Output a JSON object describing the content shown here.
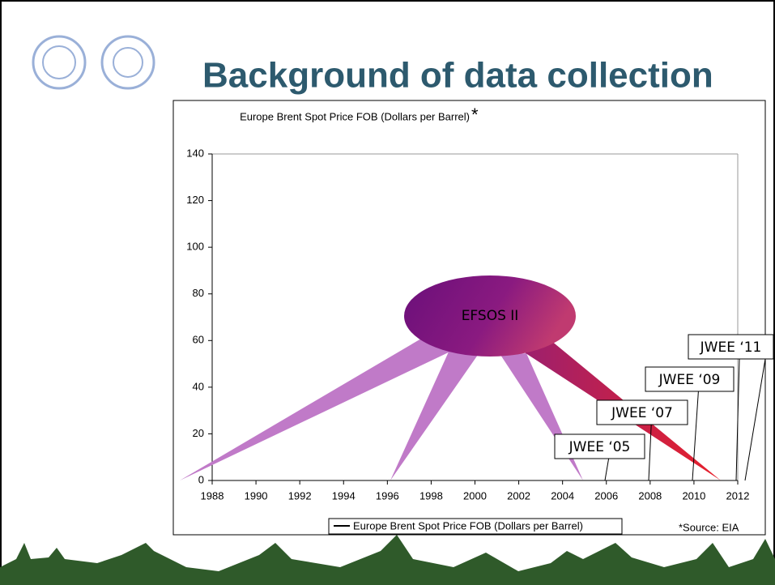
{
  "title": "Background of data collection",
  "chart_data": {
    "type": "line",
    "title": "Europe Brent Spot Price FOB (Dollars per Barrel)",
    "title_mark": "*",
    "series": [
      {
        "name": "Europe Brent Spot Price FOB (Dollars per Barrel)",
        "color": "#000000",
        "values": []
      }
    ],
    "x": [],
    "xlim": [
      1988,
      2012
    ],
    "xticks": [
      1988,
      1990,
      1992,
      1994,
      1996,
      1998,
      2000,
      2002,
      2004,
      2006,
      2008,
      2010,
      2012
    ],
    "ylim": [
      0,
      140
    ],
    "yticks": [
      0,
      20,
      40,
      60,
      80,
      100,
      120,
      140
    ],
    "annotations": [
      "EFSOS II",
      "JWEE ‘05",
      "JWEE ‘07",
      "JWEE ‘09",
      "JWEE ‘11"
    ],
    "source": "*Source: EIA"
  }
}
